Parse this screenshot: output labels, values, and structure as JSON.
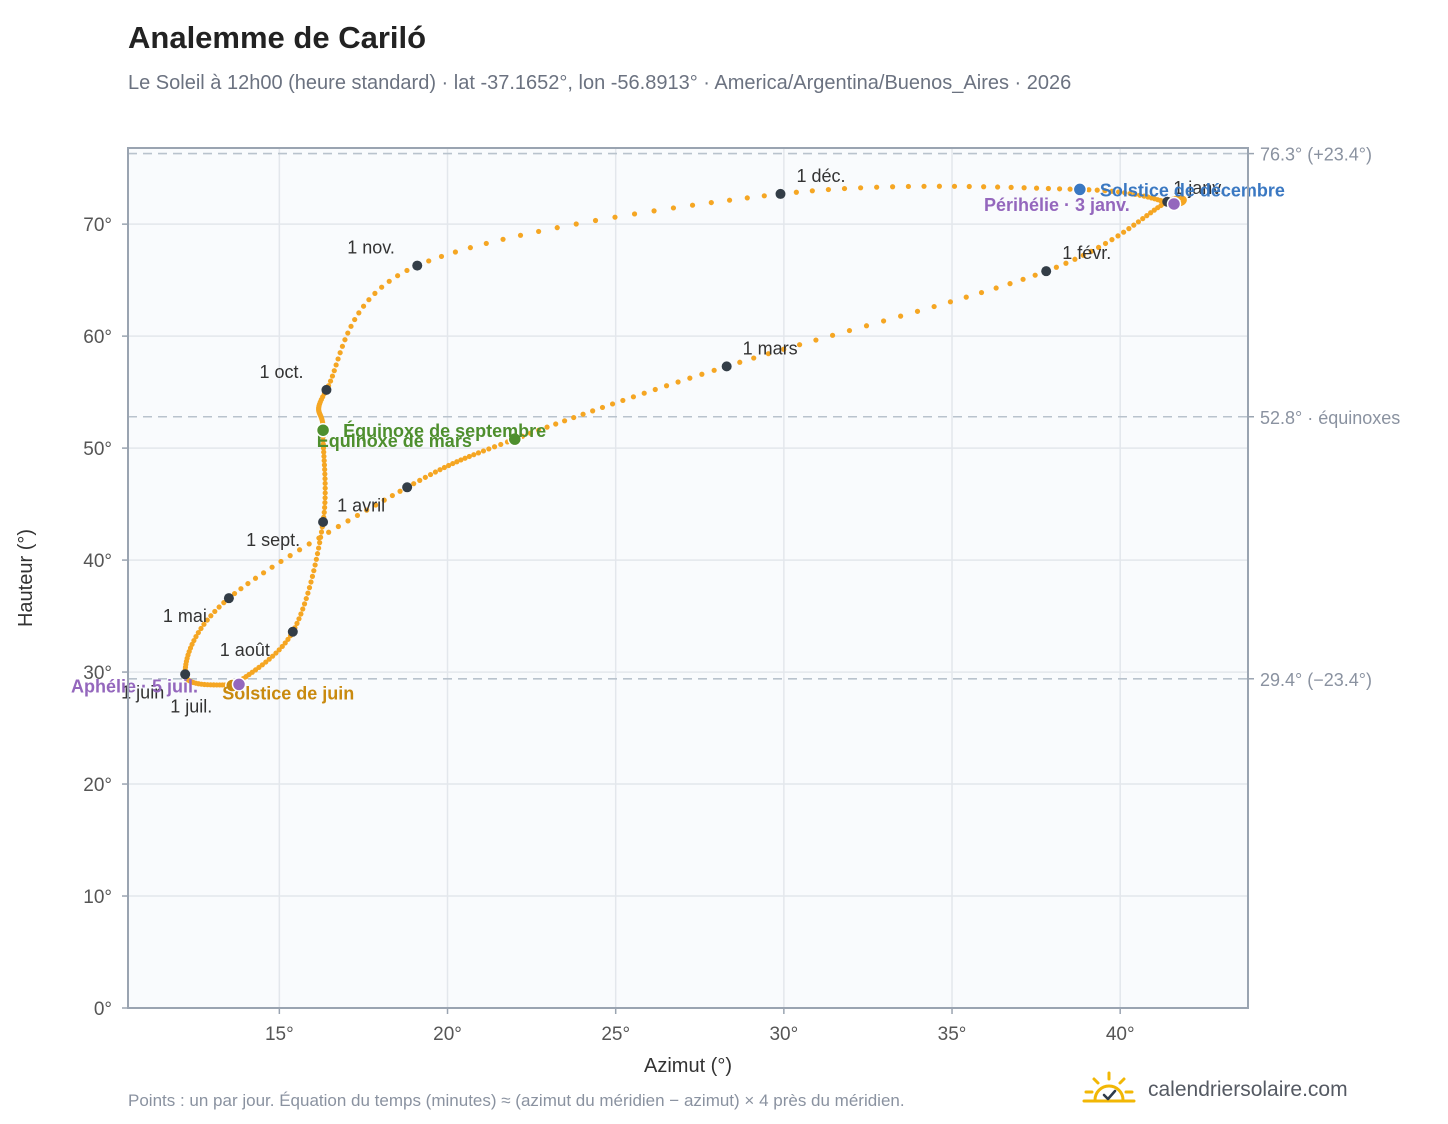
{
  "header": {
    "title": "Analemme de Cariló",
    "subtitle": "Le Soleil à 12h00 (heure standard) · lat -37.1652°, lon -56.8913° · America/Argentina/Buenos_Aires · 2026"
  },
  "footer": {
    "note": "Points : un par jour. Équation du temps (minutes) ≈ (azimut du méridien − azimut) × 4 près du méridien.",
    "brand": "calendriersolaire.com",
    "brand_icon": "sun-check-icon"
  },
  "chart_data": {
    "type": "scatter",
    "xlabel": "Azimut (°)",
    "ylabel": "Hauteur (°)",
    "xlim": [
      10.5,
      43.8
    ],
    "ylim": [
      0,
      76.8
    ],
    "xticks": [
      15,
      20,
      25,
      30,
      35,
      40
    ],
    "xtick_labels": [
      "15°",
      "20°",
      "25°",
      "30°",
      "35°",
      "40°"
    ],
    "yticks": [
      0,
      10,
      20,
      30,
      40,
      50,
      60,
      70
    ],
    "ytick_labels": [
      "0°",
      "10°",
      "20°",
      "30°",
      "40°",
      "50°",
      "60°",
      "70°"
    ],
    "grid": true,
    "colors": {
      "curve": "#f5a623",
      "month_marker": "#333d47",
      "solstice_june": "#c98a0f",
      "solstice_december": "#3a78c2",
      "equinox": "#4e8f2e",
      "apsis": "#9467bd",
      "reference_line": "#b9c3cd"
    },
    "reference_lines": [
      {
        "y": 76.3,
        "label": "76.3° (+23.4°)"
      },
      {
        "y": 52.8,
        "label": "52.8° · équinoxes"
      },
      {
        "y": 29.4,
        "label": "29.4° (−23.4°)"
      }
    ],
    "key_points": [
      {
        "date": "1 janv.",
        "x": 41.4,
        "y": 72.0
      },
      {
        "date": "1 févr.",
        "x": 37.8,
        "y": 65.8
      },
      {
        "date": "1 mars",
        "x": 28.3,
        "y": 57.3
      },
      {
        "date": "Équinoxe de mars",
        "x": 22.0,
        "y": 50.8
      },
      {
        "date": "1 avril",
        "x": 18.8,
        "y": 46.5
      },
      {
        "date": "1 mai",
        "x": 13.5,
        "y": 36.6
      },
      {
        "date": "1 juin",
        "x": 12.2,
        "y": 29.8
      },
      {
        "date": "Solstice de juin",
        "x": 13.6,
        "y": 28.8
      },
      {
        "date": "1 juil.",
        "x": 13.6,
        "y": 28.7
      },
      {
        "date": "1 août",
        "x": 15.4,
        "y": 33.6
      },
      {
        "date": "1 sept.",
        "x": 16.3,
        "y": 43.4
      },
      {
        "date": "Équinoxe de septembre",
        "x": 16.3,
        "y": 51.6
      },
      {
        "date": "1 oct.",
        "x": 16.4,
        "y": 55.2
      },
      {
        "date": "1 nov.",
        "x": 19.1,
        "y": 66.3
      },
      {
        "date": "1 déc.",
        "x": 29.9,
        "y": 72.7
      },
      {
        "date": "Solstice de décembre",
        "x": 38.8,
        "y": 73.1
      },
      {
        "date": "Périhélie",
        "x": 41.6,
        "y": 71.8
      }
    ],
    "month_markers": [
      {
        "label": "1 janv.",
        "x": 41.4,
        "y": 72.0,
        "dx": 6,
        "dy": -8,
        "anchor": "start"
      },
      {
        "label": "1 févr.",
        "x": 37.8,
        "y": 65.8,
        "dx": 16,
        "dy": -12,
        "anchor": "start"
      },
      {
        "label": "1 mars",
        "x": 28.3,
        "y": 57.3,
        "dx": 16,
        "dy": -12,
        "anchor": "start"
      },
      {
        "label": "1 avril",
        "x": 18.8,
        "y": 46.5,
        "dx": -70,
        "dy": 24,
        "anchor": "start"
      },
      {
        "label": "1 mai",
        "x": 13.5,
        "y": 36.6,
        "dx": -66,
        "dy": 24,
        "anchor": "start"
      },
      {
        "label": "1 juin",
        "x": 12.2,
        "y": 29.8,
        "dx": -64,
        "dy": 24,
        "anchor": "start"
      },
      {
        "label": "1 juil.",
        "x": 13.6,
        "y": 28.7,
        "dx": -62,
        "dy": 26,
        "anchor": "start"
      },
      {
        "label": "1 août",
        "x": 15.4,
        "y": 33.6,
        "dx": -73,
        "dy": 24,
        "anchor": "start"
      },
      {
        "label": "1 sept.",
        "x": 16.3,
        "y": 43.4,
        "dx": -77,
        "dy": 24,
        "anchor": "start"
      },
      {
        "label": "1 oct.",
        "x": 16.4,
        "y": 55.2,
        "dx": -67,
        "dy": -12,
        "anchor": "start"
      },
      {
        "label": "1 nov.",
        "x": 19.1,
        "y": 66.3,
        "dx": -70,
        "dy": -12,
        "anchor": "start"
      },
      {
        "label": "1 déc.",
        "x": 29.9,
        "y": 72.7,
        "dx": 16,
        "dy": -12,
        "anchor": "start"
      }
    ],
    "events": [
      {
        "label": "Solstice de juin",
        "x": 13.6,
        "y": 28.8,
        "color": "#c98a0f",
        "dx": -10,
        "dy": 14,
        "anchor": "start"
      },
      {
        "label": "Solstice de décembre",
        "x": 38.8,
        "y": 73.1,
        "color": "#3a78c2",
        "dx": 20,
        "dy": 7,
        "anchor": "start"
      },
      {
        "label": "Équinoxe de mars",
        "x": 22.0,
        "y": 50.8,
        "color": "#4e8f2e",
        "dx": -198,
        "dy": 8,
        "anchor": "start"
      },
      {
        "label": "Équinoxe de septembre",
        "x": 16.3,
        "y": 51.6,
        "color": "#4e8f2e",
        "dx": 20,
        "dy": 7,
        "anchor": "start"
      },
      {
        "label": "Périhélie · 3 janv.",
        "x": 41.6,
        "y": 71.8,
        "color": "#9467bd",
        "dx": -190,
        "dy": 7,
        "anchor": "start"
      },
      {
        "label": "Aphélie · 5 juil.",
        "x": 13.8,
        "y": 28.9,
        "color": "#9467bd",
        "dx": -168,
        "dy": 8,
        "anchor": "start"
      }
    ]
  }
}
